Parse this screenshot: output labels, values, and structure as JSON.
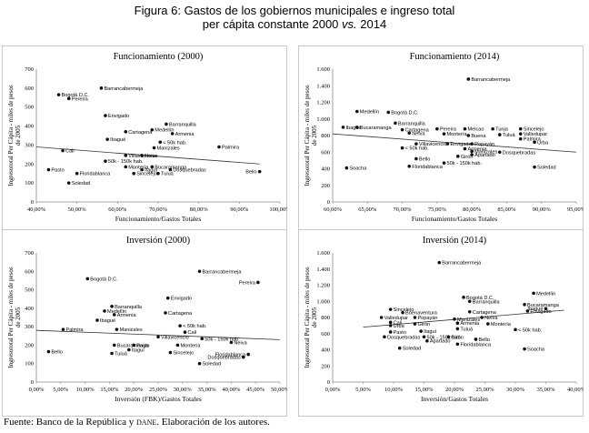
{
  "figure": {
    "title_line1": "Figura 6: Gastos de los gobiernos municipales e ingreso total",
    "title_line2_prefix": "per cápita constante 2000 ",
    "title_line2_italic": "vs.",
    "title_line2_suffix": " 2014"
  },
  "source": {
    "prefix": "Fuente: Banco de la República y ",
    "dane": "dane",
    "suffix": ". Elaboración de los autores."
  },
  "chart_data": [
    {
      "type": "scatter",
      "title": "Funcionamiento (2000)",
      "xlabel": "Funcionamiento/Gastos Totales",
      "ylabel_line1": "Ingresototal Per Cápita - miles de pesos",
      "ylabel_line2": "de 2005",
      "xlim": [
        40,
        100
      ],
      "ylim": [
        0,
        700
      ],
      "x_ticks": [
        40,
        50,
        60,
        70,
        80,
        90,
        100
      ],
      "x_tick_labels": [
        "40,00%",
        "50,00%",
        "60,00%",
        "70,00%",
        "80,00%",
        "90,00%",
        "100,00%"
      ],
      "y_ticks": [
        0,
        100,
        200,
        300,
        400,
        500,
        600,
        700
      ],
      "y_tick_labels": [
        "0",
        "100",
        "200",
        "300",
        "400",
        "500",
        "600",
        "700"
      ],
      "trend": [
        [
          40,
          290
        ],
        [
          95,
          200
        ]
      ],
      "points": [
        {
          "x": 56.0,
          "y": 600,
          "label": "Barrancabermeja"
        },
        {
          "x": 45.5,
          "y": 565,
          "label": "Bogotá D.C."
        },
        {
          "x": 48.0,
          "y": 545,
          "label": "Pereira"
        },
        {
          "x": 57.0,
          "y": 455,
          "label": "Envigado"
        },
        {
          "x": 72.0,
          "y": 410,
          "label": "Barranquilla"
        },
        {
          "x": 68.5,
          "y": 380,
          "label": "Medellín"
        },
        {
          "x": 73.5,
          "y": 360,
          "label": "Armenia"
        },
        {
          "x": 62.0,
          "y": 370,
          "label": "Cartagena"
        },
        {
          "x": 57.5,
          "y": 330,
          "label": "Ibagué"
        },
        {
          "x": 70.5,
          "y": 315,
          "label": "< 50k hab."
        },
        {
          "x": 85.0,
          "y": 290,
          "label": "Palmira"
        },
        {
          "x": 69.0,
          "y": 285,
          "label": "Manizales"
        },
        {
          "x": 46.5,
          "y": 270,
          "label": "Cali"
        },
        {
          "x": 62.0,
          "y": 245,
          "label": "Villavicencio"
        },
        {
          "x": 66.0,
          "y": 245,
          "label": "Neiva"
        },
        {
          "x": 57.0,
          "y": 215,
          "label": "50k - 150k hab."
        },
        {
          "x": 62.0,
          "y": 185,
          "label": "Montería"
        },
        {
          "x": 68.5,
          "y": 185,
          "label": "Bucaramanga"
        },
        {
          "x": 66.0,
          "y": 170,
          "label": "Itaguí"
        },
        {
          "x": 73.0,
          "y": 170,
          "label": "Dosquebradas"
        },
        {
          "x": 64.0,
          "y": 150,
          "label": "Sincelejo"
        },
        {
          "x": 70.0,
          "y": 150,
          "label": "Tuluá"
        },
        {
          "x": 43.0,
          "y": 170,
          "label": "Pasto"
        },
        {
          "x": 50.0,
          "y": 150,
          "label": "Floridablanca"
        },
        {
          "x": 48.0,
          "y": 100,
          "label": "Soledad"
        },
        {
          "x": 95.0,
          "y": 160,
          "label": "Bello"
        }
      ]
    },
    {
      "type": "scatter",
      "title": "Funcionamiento (2014)",
      "xlabel": "Funcionamiento/Gastos Totales",
      "ylabel_line1": "Ingresototal Per Cápita - miles de pesos",
      "ylabel_line2": "de 2005",
      "xlim": [
        60,
        95
      ],
      "ylim": [
        0,
        1600
      ],
      "x_ticks": [
        60,
        65,
        70,
        75,
        80,
        85,
        90,
        95
      ],
      "x_tick_labels": [
        "60,00%",
        "65,00%",
        "70,00%",
        "75,00%",
        "80,00%",
        "85,00%",
        "90,00%",
        "95,00%"
      ],
      "y_ticks": [
        0,
        200,
        400,
        600,
        800,
        1000,
        1200,
        1400,
        1600
      ],
      "y_tick_labels": [
        "0",
        "200",
        "400",
        "600",
        "800",
        "1.000",
        "1.200",
        "1.400",
        "1.600"
      ],
      "trend": [
        [
          60,
          820
        ],
        [
          95,
          600
        ]
      ],
      "points": [
        {
          "x": 79.5,
          "y": 1480,
          "label": "Barrancabermeja"
        },
        {
          "x": 63.5,
          "y": 1090,
          "label": "Medellín"
        },
        {
          "x": 68.0,
          "y": 1080,
          "label": "Bogotá D.C."
        },
        {
          "x": 69.0,
          "y": 950,
          "label": "Barranquilla"
        },
        {
          "x": 61.5,
          "y": 900,
          "label": "Ibagué"
        },
        {
          "x": 63.5,
          "y": 900,
          "label": "Bucaramanga"
        },
        {
          "x": 70.0,
          "y": 870,
          "label": "Cartagena"
        },
        {
          "x": 75.0,
          "y": 880,
          "label": "Pereira"
        },
        {
          "x": 79.0,
          "y": 880,
          "label": "Melcao"
        },
        {
          "x": 83.0,
          "y": 880,
          "label": "Tunja"
        },
        {
          "x": 87.0,
          "y": 880,
          "label": "Sincelejo"
        },
        {
          "x": 71.0,
          "y": 830,
          "label": "Neiva"
        },
        {
          "x": 76.0,
          "y": 820,
          "label": "Montería"
        },
        {
          "x": 79.5,
          "y": 800,
          "label": "Buena"
        },
        {
          "x": 84.0,
          "y": 810,
          "label": "Tuluá"
        },
        {
          "x": 87.0,
          "y": 820,
          "label": "Valledupar"
        },
        {
          "x": 87.0,
          "y": 760,
          "label": "Palmira"
        },
        {
          "x": 72.0,
          "y": 700,
          "label": "Villavicencio"
        },
        {
          "x": 76.5,
          "y": 700,
          "label": "Envigado"
        },
        {
          "x": 80.0,
          "y": 700,
          "label": "Popayán"
        },
        {
          "x": 89.0,
          "y": 720,
          "label": "Urba"
        },
        {
          "x": 70.0,
          "y": 650,
          "label": "< 50k hab."
        },
        {
          "x": 79.0,
          "y": 640,
          "label": "Armenia"
        },
        {
          "x": 80.0,
          "y": 610,
          "label": "Manizales"
        },
        {
          "x": 84.0,
          "y": 600,
          "label": "Dosquebradas"
        },
        {
          "x": 72.0,
          "y": 520,
          "label": "Bello"
        },
        {
          "x": 78.0,
          "y": 550,
          "label": "Girón"
        },
        {
          "x": 80.0,
          "y": 570,
          "label": "Apartadó"
        },
        {
          "x": 76.0,
          "y": 470,
          "label": "50k - 150k hab."
        },
        {
          "x": 62.0,
          "y": 410,
          "label": "Soacha"
        },
        {
          "x": 71.0,
          "y": 430,
          "label": "Floridablanca"
        },
        {
          "x": 89.0,
          "y": 420,
          "label": "Soledad"
        }
      ]
    },
    {
      "type": "scatter",
      "title": "Inversión (2000)",
      "xlabel": "Inversión (FBK)/Gastos Totales",
      "ylabel_line1": "Ingresototal Per Cápita - miles de pesos",
      "ylabel_line2": "de 2005",
      "xlim": [
        0,
        50
      ],
      "ylim": [
        0,
        700
      ],
      "x_ticks": [
        0,
        5,
        10,
        15,
        20,
        25,
        30,
        35,
        40,
        45,
        50
      ],
      "x_tick_labels": [
        "0,00%",
        "5,00%",
        "10,00%",
        "15,00%",
        "20,00%",
        "25,00%",
        "30,00%",
        "35,00%",
        "40,00%",
        "45,00%",
        "50,00%"
      ],
      "y_ticks": [
        0,
        100,
        200,
        300,
        400,
        500,
        600,
        700
      ],
      "y_tick_labels": [
        "0",
        "100",
        "200",
        "300",
        "400",
        "500",
        "600",
        "700"
      ],
      "trend": [
        [
          0,
          280
        ],
        [
          50,
          230
        ]
      ],
      "points": [
        {
          "x": 33.5,
          "y": 600,
          "label": "Barrancabermeja"
        },
        {
          "x": 10.5,
          "y": 560,
          "label": "Bogotá D.C."
        },
        {
          "x": 45.5,
          "y": 540,
          "label": "Pereira"
        },
        {
          "x": 27.0,
          "y": 455,
          "label": "Envigado"
        },
        {
          "x": 15.5,
          "y": 410,
          "label": "Barranquilla"
        },
        {
          "x": 14.0,
          "y": 385,
          "label": "Medellín"
        },
        {
          "x": 16.0,
          "y": 365,
          "label": "Armenia"
        },
        {
          "x": 26.5,
          "y": 375,
          "label": "Cartagena"
        },
        {
          "x": 12.5,
          "y": 335,
          "label": "Ibagué"
        },
        {
          "x": 5.5,
          "y": 285,
          "label": "Palmira"
        },
        {
          "x": 16.5,
          "y": 285,
          "label": "Manizales"
        },
        {
          "x": 29.5,
          "y": 305,
          "label": "< 50k hab."
        },
        {
          "x": 30.5,
          "y": 270,
          "label": "Cali"
        },
        {
          "x": 25.0,
          "y": 245,
          "label": "Villavicencio"
        },
        {
          "x": 34.0,
          "y": 235,
          "label": "50k - 150k hab."
        },
        {
          "x": 16.0,
          "y": 200,
          "label": "Bucaramanga"
        },
        {
          "x": 20.0,
          "y": 200,
          "label": "Pasto"
        },
        {
          "x": 29.0,
          "y": 200,
          "label": "Montería"
        },
        {
          "x": 19.0,
          "y": 175,
          "label": "Itaguí"
        },
        {
          "x": 15.5,
          "y": 155,
          "label": "Tuluá"
        },
        {
          "x": 27.5,
          "y": 160,
          "label": "Sincelejo"
        },
        {
          "x": 40.0,
          "y": 215,
          "label": "Neiva"
        },
        {
          "x": 43.5,
          "y": 150,
          "label": "Floridablanca"
        },
        {
          "x": 42.5,
          "y": 135,
          "label": "Dosquebradas"
        },
        {
          "x": 33.5,
          "y": 100,
          "label": "Soledad"
        },
        {
          "x": 2.5,
          "y": 165,
          "label": "Bello"
        }
      ]
    },
    {
      "type": "scatter",
      "title": "Inversión (2014)",
      "xlabel": "Inversión/Gastos Totales",
      "ylabel_line1": "Ingresototal Per Cápita - miles de pesos",
      "ylabel_line2": "de 2005",
      "xlim": [
        0,
        40
      ],
      "ylim": [
        0,
        1600
      ],
      "x_ticks": [
        0,
        5,
        10,
        15,
        20,
        25,
        30,
        35,
        40
      ],
      "x_tick_labels": [
        "0,00%",
        "5,00%",
        "10,00%",
        "15,00%",
        "20,00%",
        "25,00%",
        "30,00%",
        "35,00%",
        "40,00%"
      ],
      "y_ticks": [
        0,
        200,
        400,
        600,
        800,
        1000,
        1200,
        1400,
        1600
      ],
      "y_tick_labels": [
        "0",
        "200",
        "400",
        "600",
        "800",
        "1.000",
        "1.200",
        "1.400",
        "1.600"
      ],
      "trend": [
        [
          5,
          680
        ],
        [
          38,
          890
        ]
      ],
      "points": [
        {
          "x": 17.5,
          "y": 1480,
          "label": "Barrancabermeja"
        },
        {
          "x": 33.0,
          "y": 1100,
          "label": "Medellín"
        },
        {
          "x": 21.5,
          "y": 1050,
          "label": "Bogotá D.C."
        },
        {
          "x": 22.5,
          "y": 1000,
          "label": "Barranquilla"
        },
        {
          "x": 31.5,
          "y": 960,
          "label": "Bucaramanga"
        },
        {
          "x": 35.0,
          "y": 910,
          "label": "Ibagué"
        },
        {
          "x": 32.0,
          "y": 880,
          "label": "Envigado"
        },
        {
          "x": 9.5,
          "y": 900,
          "label": "Sincelejo"
        },
        {
          "x": 11.5,
          "y": 860,
          "label": "Buenaventura"
        },
        {
          "x": 22.5,
          "y": 870,
          "label": "Cartagena"
        },
        {
          "x": 8.0,
          "y": 800,
          "label": "Valledupar"
        },
        {
          "x": 13.5,
          "y": 800,
          "label": "Popayán"
        },
        {
          "x": 20.0,
          "y": 780,
          "label": "Manizales"
        },
        {
          "x": 24.5,
          "y": 800,
          "label": "Neiva"
        },
        {
          "x": 9.5,
          "y": 740,
          "label": "Cali"
        },
        {
          "x": 9.5,
          "y": 700,
          "label": "Urba"
        },
        {
          "x": 13.5,
          "y": 720,
          "label": "Girón"
        },
        {
          "x": 20.5,
          "y": 730,
          "label": "Armenia"
        },
        {
          "x": 25.5,
          "y": 720,
          "label": "Montería"
        },
        {
          "x": 20.5,
          "y": 660,
          "label": "Tuluá"
        },
        {
          "x": 30.0,
          "y": 650,
          "label": "< 50k hab."
        },
        {
          "x": 9.5,
          "y": 620,
          "label": "Pasto"
        },
        {
          "x": 14.5,
          "y": 630,
          "label": "Itaguí"
        },
        {
          "x": 8.5,
          "y": 560,
          "label": "Dosquebradas"
        },
        {
          "x": 15.0,
          "y": 560,
          "label": "50k - 150k hab."
        },
        {
          "x": 19.0,
          "y": 560,
          "label": "Girón"
        },
        {
          "x": 23.5,
          "y": 530,
          "label": "Bello"
        },
        {
          "x": 15.5,
          "y": 510,
          "label": "Apartadó"
        },
        {
          "x": 20.5,
          "y": 470,
          "label": "Floridablanca"
        },
        {
          "x": 11.0,
          "y": 420,
          "label": "Soledad"
        },
        {
          "x": 31.5,
          "y": 410,
          "label": "Soacha"
        }
      ]
    }
  ]
}
